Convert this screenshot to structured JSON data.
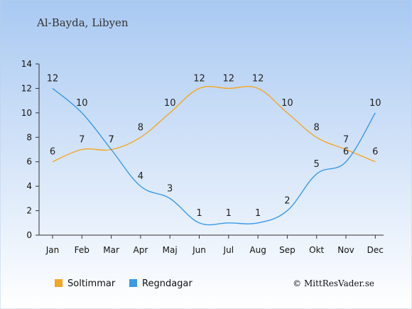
{
  "chart_data": {
    "type": "line",
    "title": "Al-Bayda, Libyen",
    "categories": [
      "Jan",
      "Feb",
      "Mar",
      "Apr",
      "Maj",
      "Jun",
      "Jul",
      "Aug",
      "Sep",
      "Okt",
      "Nov",
      "Dec"
    ],
    "yticks": [
      "0",
      "2",
      "4",
      "6",
      "8",
      "10",
      "12",
      "14"
    ],
    "ylim": [
      0,
      14
    ],
    "series": [
      {
        "name": "Soltimmar",
        "color": "#f5a623",
        "values": [
          6,
          7,
          7,
          8,
          10,
          12,
          12,
          12,
          10,
          8,
          7,
          6
        ]
      },
      {
        "name": "Regndagar",
        "color": "#3a99e8",
        "values": [
          12,
          10,
          7,
          4,
          3,
          1,
          1,
          1,
          2,
          5,
          6,
          10
        ]
      }
    ],
    "legend_position": "bottom-left"
  },
  "credit": "© MittResVader.se"
}
